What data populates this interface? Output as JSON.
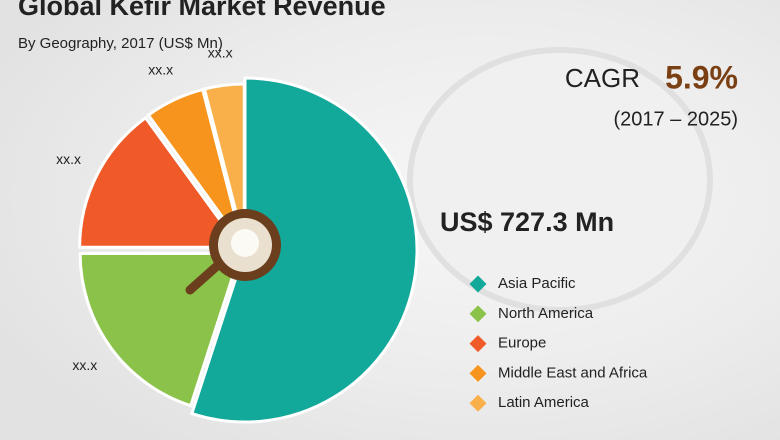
{
  "chart_data": {
    "type": "pie",
    "title": "Global Kefir Market Revenue",
    "subtitle": "By Geography, 2017 (US$ Mn)",
    "cagr_label": "CAGR",
    "cagr_value": "5.9%",
    "cagr_period": "(2017 – 2025)",
    "total_label": "US$ 727.3 Mn",
    "categories": [
      "Asia Pacific",
      "North America",
      "Europe",
      "Middle East and Africa",
      "Latin America"
    ],
    "values": [
      55,
      20,
      15,
      6,
      4
    ],
    "value_labels": [
      null,
      "xx.x",
      "xx.x",
      "xx.x",
      "xx.x"
    ],
    "colors": [
      "#12a89a",
      "#8bc34a",
      "#f05a28",
      "#f7941d",
      "#f9b04a"
    ],
    "legend": "right"
  }
}
